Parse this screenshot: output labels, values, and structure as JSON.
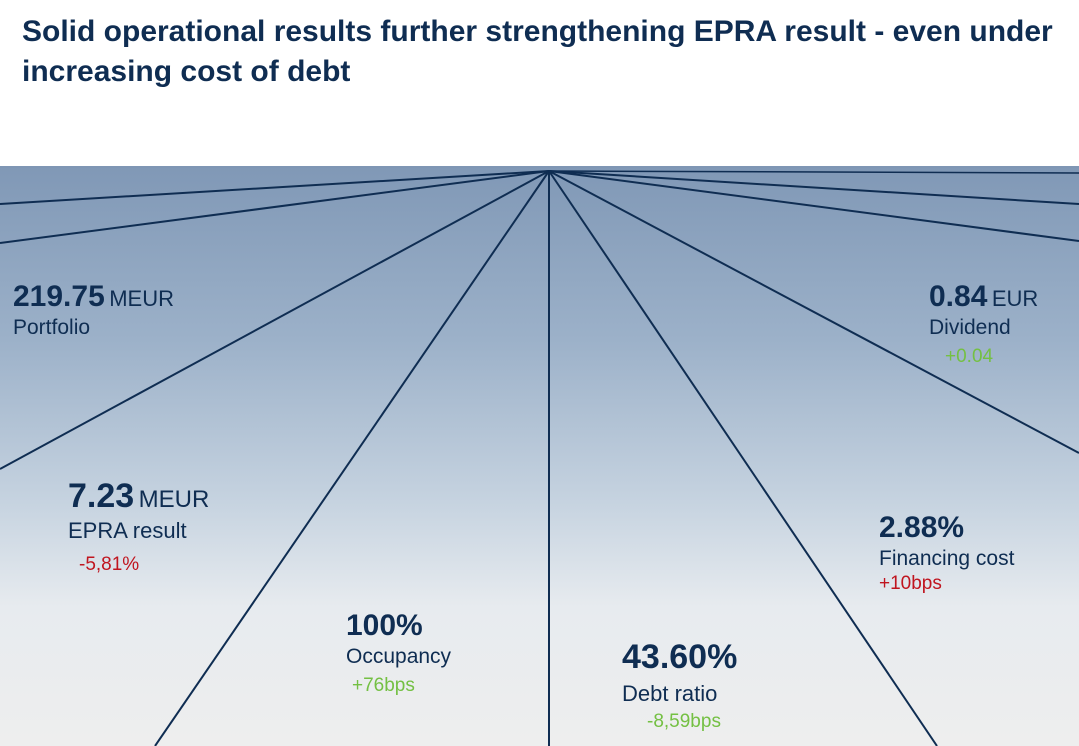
{
  "title": "Solid operational results further strengthening EPRA result - even under increasing cost of debt",
  "colors": {
    "title": "#0f2d52",
    "lines": "#0f2d52",
    "positive": "#74c043",
    "negative": "#c0151f"
  },
  "kpis": {
    "portfolio": {
      "value": "219.75",
      "unit": "MEUR",
      "label": "Portfolio"
    },
    "dividend": {
      "value": "0.84",
      "unit": "EUR",
      "label": "Dividend",
      "change": "+0.04"
    },
    "epra": {
      "value": "7.23",
      "unit": "MEUR",
      "label": "EPRA result",
      "change": "-5,81%"
    },
    "financing": {
      "value": "2.88%",
      "label": "Financing cost",
      "change": "+10bps"
    },
    "occupancy": {
      "value": "100%",
      "label": "Occupancy",
      "change": "+76bps"
    },
    "debt": {
      "value": "43.60%",
      "label": "Debt ratio",
      "change": "-8,59bps"
    }
  }
}
